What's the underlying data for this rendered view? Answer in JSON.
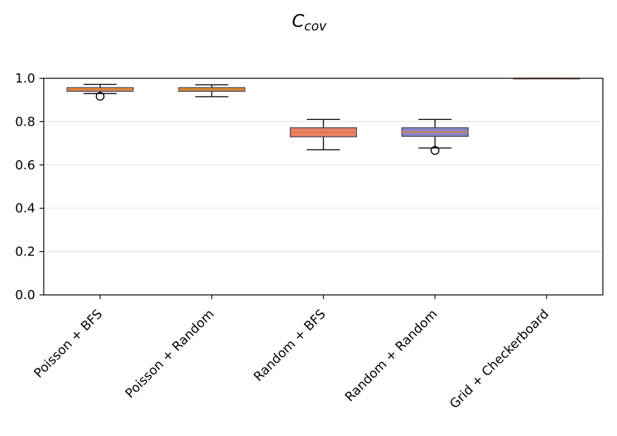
{
  "chart_data": {
    "type": "box",
    "title": {
      "main": "C",
      "subscript": "cov"
    },
    "xlabel": "",
    "ylabel": "",
    "ylim": [
      0.0,
      1.0
    ],
    "yticks": [
      0.0,
      0.2,
      0.4,
      0.6,
      0.8,
      1.0
    ],
    "ytick_labels": [
      "0.0",
      "0.2",
      "0.4",
      "0.6",
      "0.8",
      "1.0"
    ],
    "grid": "horizontal",
    "categories": [
      "Poisson + BFS",
      "Poisson + Random",
      "Random + BFS",
      "Random + Random",
      "Grid + Checkerboard"
    ],
    "boxes": [
      {
        "whislo": 0.93,
        "q1": 0.94,
        "med": 0.948,
        "q3": 0.957,
        "whishi": 0.972,
        "fliers": [
          0.917
        ],
        "color": "#e8963c"
      },
      {
        "whislo": 0.915,
        "q1": 0.94,
        "med": 0.947,
        "q3": 0.957,
        "whishi": 0.97,
        "fliers": [],
        "color": "#d9962e"
      },
      {
        "whislo": 0.67,
        "q1": 0.73,
        "med": 0.751,
        "q3": 0.772,
        "whishi": 0.81,
        "fliers": [],
        "color": "#e8806a"
      },
      {
        "whislo": 0.678,
        "q1": 0.732,
        "med": 0.752,
        "q3": 0.772,
        "whishi": 0.81,
        "fliers": [
          0.667
        ],
        "color": "#8888c8"
      },
      {
        "whislo": 1.0,
        "q1": 1.0,
        "med": 1.0,
        "q3": 1.0,
        "whishi": 1.0,
        "fliers": [],
        "color": "#d9962e"
      }
    ],
    "colors": {
      "median": "#e07a3c",
      "box_edge": "#3a3a5a",
      "whisker": "#000000",
      "grid": "#e6e6e6"
    }
  }
}
